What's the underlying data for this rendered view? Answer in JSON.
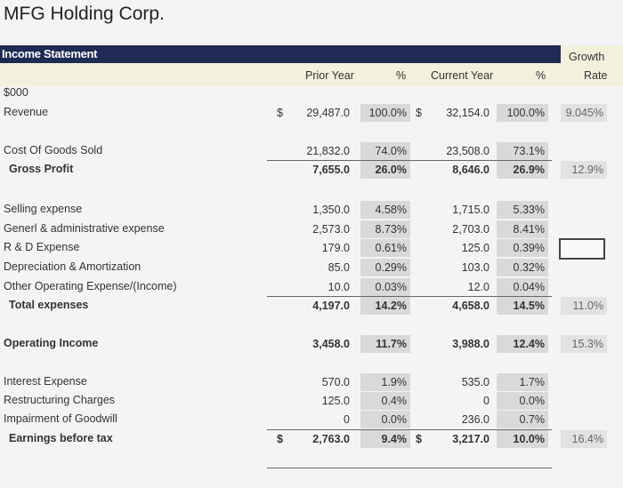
{
  "company": "MFG Holding Corp.",
  "section": "Income Statement",
  "units": "$000",
  "headers": {
    "prior_year": "Prior Year",
    "pct1": "%",
    "current_year": "Current Year",
    "pct2": "%",
    "growth_line1": "Growth",
    "growth_line2": "Rate"
  },
  "rows": [
    {
      "label": "Revenue",
      "dollar1": "$",
      "prior": "29,487.0",
      "prior_pct": "100.0%",
      "dollar2": "$",
      "current": "32,154.0",
      "current_pct": "100.0%",
      "growth": "9.045%"
    },
    {
      "label": "Cost Of Goods Sold",
      "prior": "21,832.0",
      "prior_pct": "74.0%",
      "current": "23,508.0",
      "current_pct": "73.1%"
    },
    {
      "label": "Gross Profit",
      "bold": true,
      "prior": "7,655.0",
      "prior_pct": "26.0%",
      "current": "8,646.0",
      "current_pct": "26.9%",
      "growth": "12.9%"
    },
    {
      "label": "Selling expense",
      "prior": "1,350.0",
      "prior_pct": "4.58%",
      "current": "1,715.0",
      "current_pct": "5.33%"
    },
    {
      "label": "Generl & administrative expense",
      "prior": "2,573.0",
      "prior_pct": "8.73%",
      "current": "2,703.0",
      "current_pct": "8.41%"
    },
    {
      "label": "R & D Expense",
      "prior": "179.0",
      "prior_pct": "0.61%",
      "current": "125.0",
      "current_pct": "0.39%"
    },
    {
      "label": "Depreciation & Amortization",
      "prior": "85.0",
      "prior_pct": "0.29%",
      "current": "103.0",
      "current_pct": "0.32%"
    },
    {
      "label": "Other Operating Expense/(Income)",
      "prior": "10.0",
      "prior_pct": "0.03%",
      "current": "12.0",
      "current_pct": "0.04%"
    },
    {
      "label": "Total expenses",
      "bold": true,
      "prior": "4,197.0",
      "prior_pct": "14.2%",
      "current": "4,658.0",
      "current_pct": "14.5%",
      "growth": "11.0%"
    },
    {
      "label": "Operating Income",
      "bold": true,
      "prior": "3,458.0",
      "prior_pct": "11.7%",
      "current": "3,988.0",
      "current_pct": "12.4%",
      "growth": "15.3%"
    },
    {
      "label": "Interest Expense",
      "prior": "570.0",
      "prior_pct": "1.9%",
      "current": "535.0",
      "current_pct": "1.7%"
    },
    {
      "label": "Restructuring Charges",
      "prior": "125.0",
      "prior_pct": "0.4%",
      "current": "0",
      "current_pct": "0.0%"
    },
    {
      "label": "Impairment of Goodwill",
      "prior": "0",
      "prior_pct": "0.0%",
      "current": "236.0",
      "current_pct": "0.7%"
    },
    {
      "label": "Earnings before tax",
      "bold": true,
      "dollar1": "$",
      "prior": "2,763.0",
      "prior_pct": "9.4%",
      "dollar2": "$",
      "current": "3,217.0",
      "current_pct": "10.0%",
      "growth": "16.4%"
    }
  ]
}
